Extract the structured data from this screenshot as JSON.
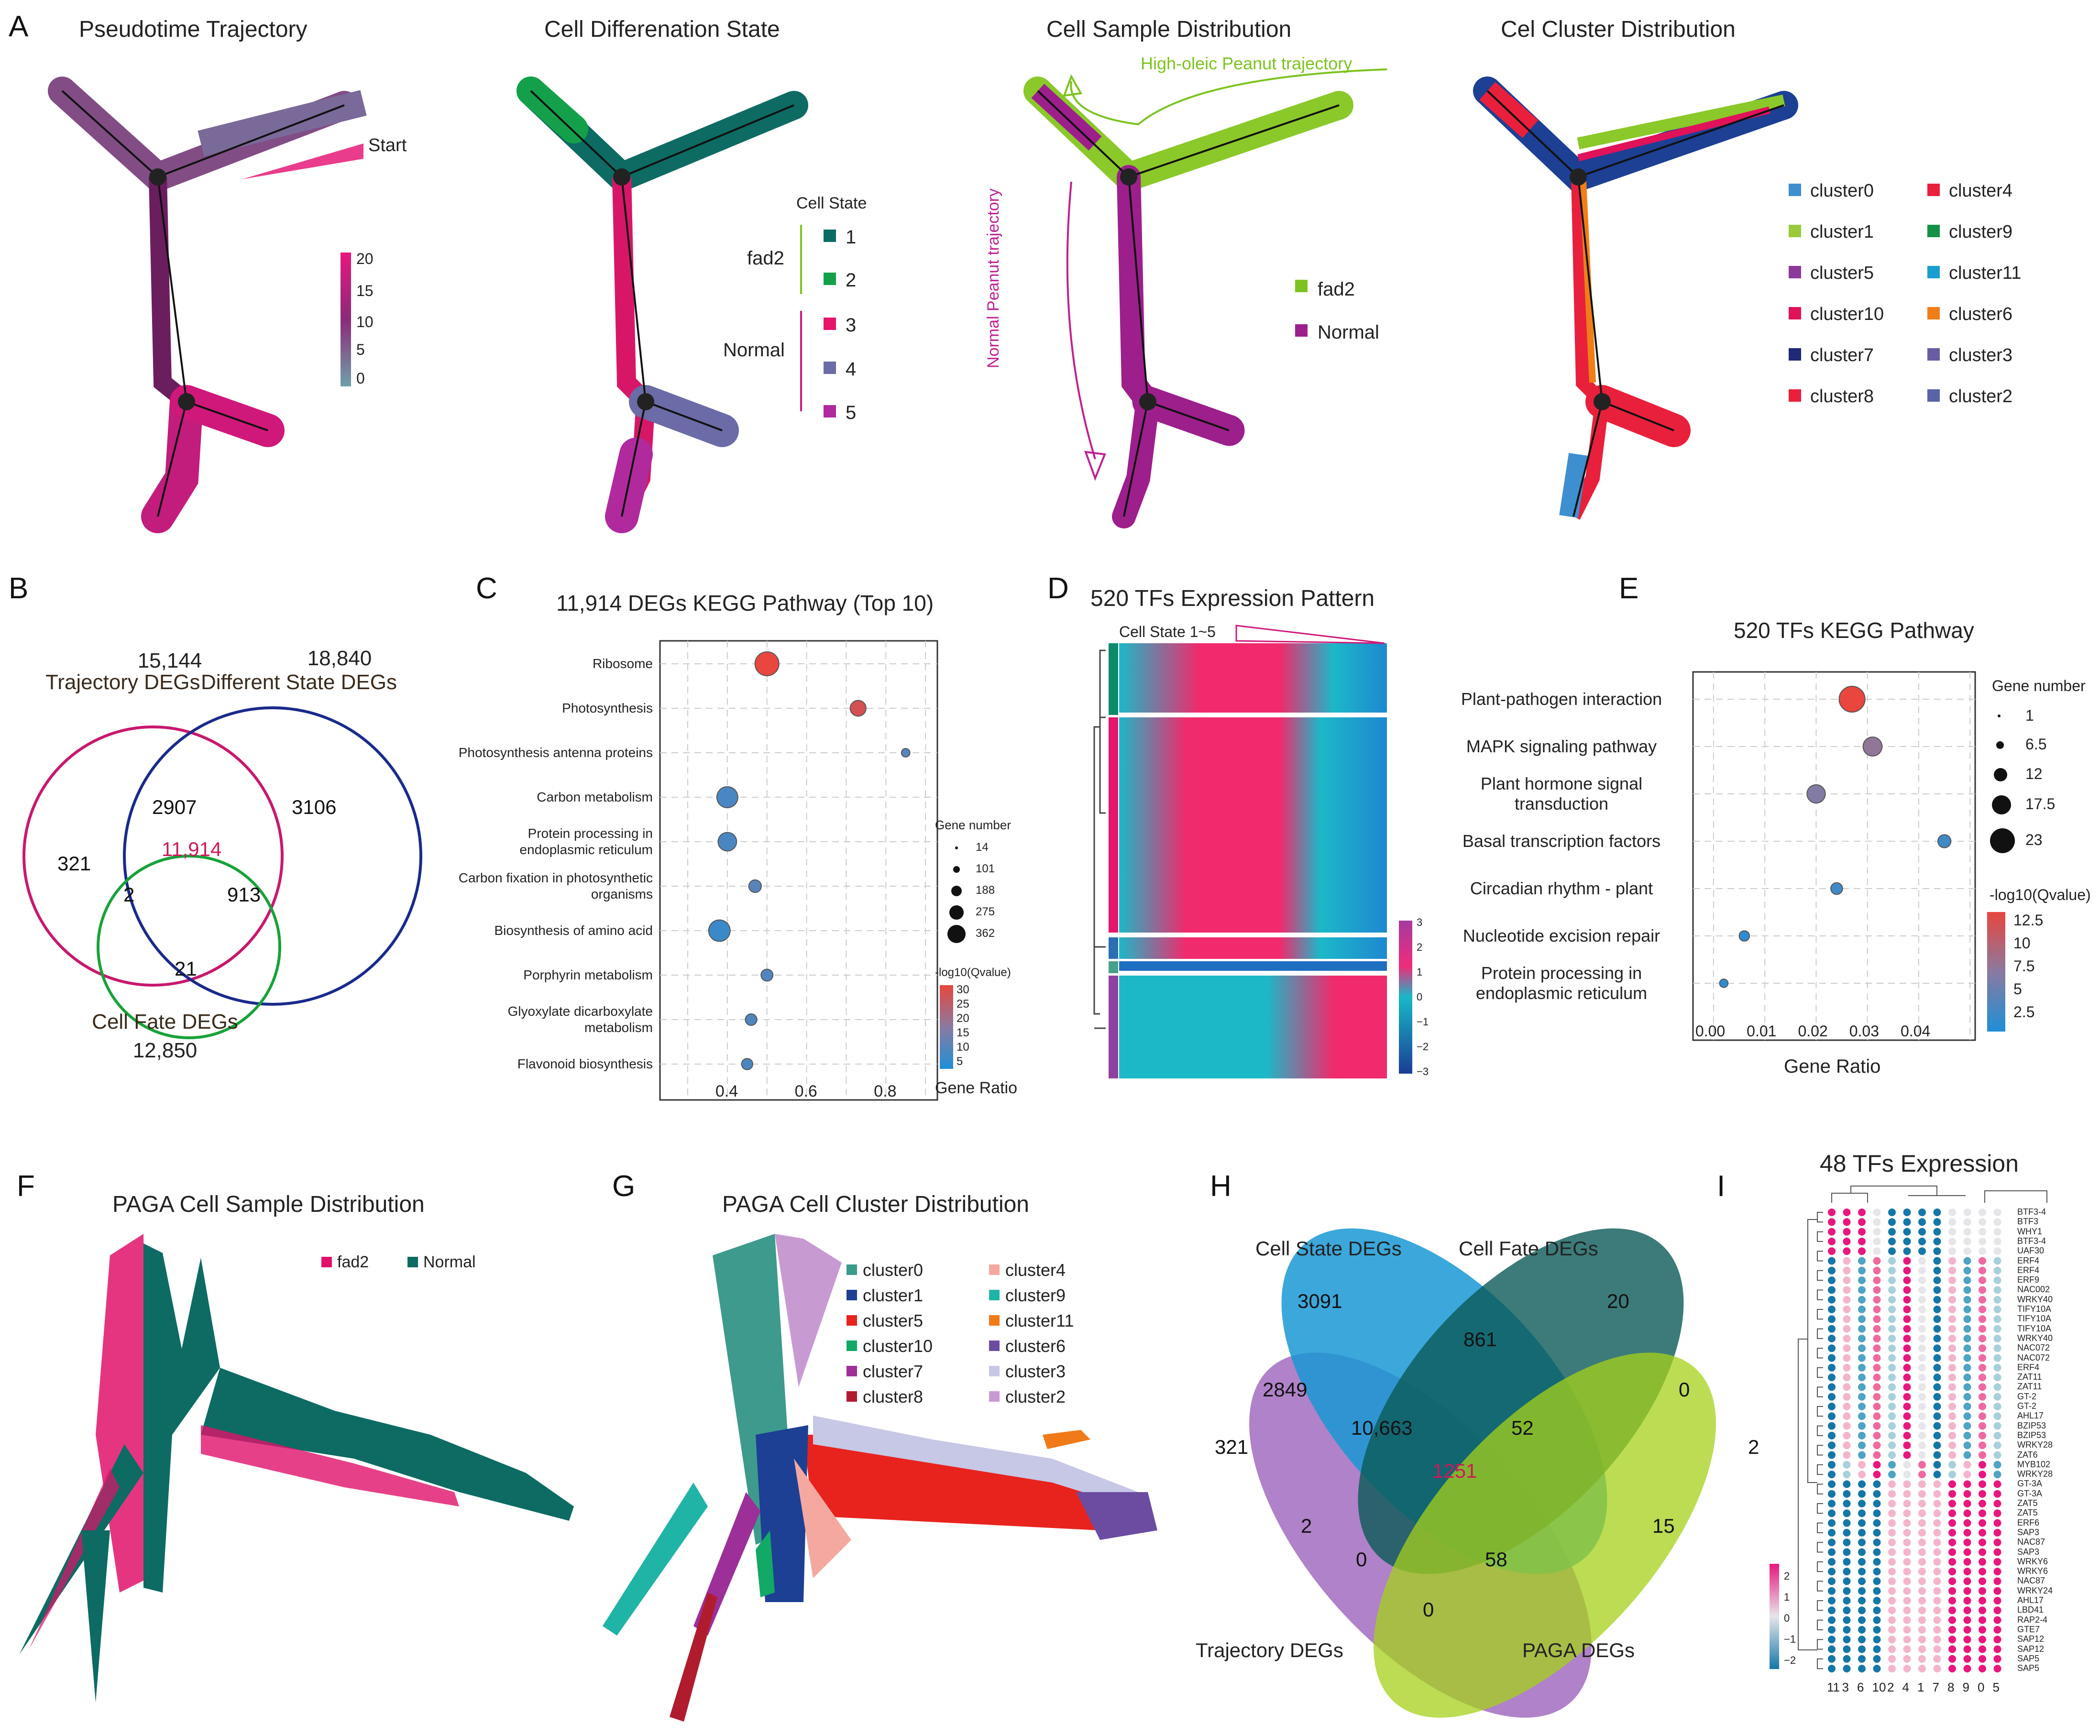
{
  "panels": {
    "A": {
      "letter": "A",
      "titles": [
        "Pseudotime Trajectory",
        "Cell Differenation State",
        "Cell Sample Distribution",
        "Cel Cluster Distribution"
      ],
      "start_label": "Start",
      "pseudotime_ticks": [
        "20",
        "15",
        "10",
        "5",
        "0"
      ],
      "cell_state": {
        "title": "Cell State",
        "groups": [
          "fad2",
          "Normal"
        ],
        "states": [
          "1",
          "2",
          "3",
          "4",
          "5"
        ],
        "colors": [
          "#0d6b63",
          "#14a04a",
          "#e6156b",
          "#6b6ba8",
          "#b02a9e"
        ]
      },
      "sample": {
        "items": [
          "fad2",
          "Normal"
        ],
        "colors": [
          "#7dc31f",
          "#9c1f8c"
        ],
        "annotations": [
          "High-oleic Peanut trajectory",
          "Normal Peanut trajectory"
        ]
      },
      "clusters": {
        "items": [
          "cluster0",
          "cluster4",
          "cluster1",
          "cluster9",
          "cluster5",
          "cluster11",
          "cluster10",
          "cluster6",
          "cluster7",
          "cluster3",
          "cluster8",
          "cluster2"
        ],
        "colors": [
          "#3d8fd0",
          "#e8203c",
          "#9ac93b",
          "#149048",
          "#8b3a9c",
          "#1a9ed0",
          "#e0125a",
          "#f07e16",
          "#202878",
          "#6a5ca3",
          "#e8203c",
          "#5a62a8"
        ]
      }
    },
    "B": {
      "letter": "B",
      "sets": [
        {
          "name": "Trajectory DEGs",
          "total": "15,144"
        },
        {
          "name": "Different State DEGs",
          "total": "18,840"
        },
        {
          "name": "Cell Fate DEGs",
          "total": "12,850"
        }
      ],
      "regions": {
        "only_traj": "321",
        "traj_state": "2907",
        "only_state": "3106",
        "all": "11,914",
        "traj_fate": "2",
        "state_fate": "913",
        "only_fate": "21"
      }
    },
    "C": {
      "letter": "C"
    },
    "D": {
      "letter": "D",
      "title": "520 TFs Expression Pattern",
      "state_label": "Cell State 1~5",
      "ticks": [
        "3",
        "2",
        "1",
        "0",
        "−1",
        "−2",
        "−3"
      ]
    },
    "E": {
      "letter": "E"
    },
    "F": {
      "letter": "F",
      "title": "PAGA Cell Sample Distribution",
      "legend": [
        "fad2",
        "Normal"
      ]
    },
    "G": {
      "letter": "G",
      "title": "PAGA Cell Cluster Distribution",
      "legend": [
        "cluster0",
        "cluster4",
        "cluster1",
        "cluster9",
        "cluster5",
        "cluster11",
        "cluster10",
        "cluster6",
        "cluster7",
        "cluster3",
        "cluster8",
        "cluster2"
      ],
      "colors": [
        "#3d9a8c",
        "#f4a8a0",
        "#1d3f94",
        "#20b4a6",
        "#e8231e",
        "#f07a18",
        "#12a866",
        "#6b4ca0",
        "#9c2f98",
        "#c7c7e6",
        "#b01c2e",
        "#c79ad2"
      ]
    },
    "H": {
      "letter": "H",
      "sets": [
        "Cell State DEGs",
        "Cell Fate DEGs",
        "Trajectory DEGs",
        "PAGA DEGs"
      ],
      "regions": {
        "s_only": "3091",
        "f_only": "20",
        "sf": "861",
        "f_p": "0",
        "st": "2849",
        "sft": "10,663",
        "sfp": "52",
        "t_only": "321",
        "p_only": "2",
        "all": "1251",
        "tp_s": "2",
        "sfp2": "15",
        "tf_only": "0",
        "tfp": "58",
        "tp": "0"
      }
    },
    "I": {
      "letter": "I",
      "title": "48 TFs Expression",
      "genes": [
        "BTF3-4",
        "BTF3",
        "WHY1",
        "BTF3-4",
        "UAF30",
        "ERF4",
        "ERF4",
        "ERF9",
        "NAC002",
        "WRKY40",
        "TIFY10A",
        "TIFY10A",
        "TIFY10A",
        "WRKY40",
        "NAC072",
        "NAC072",
        "ERF4",
        "ZAT11",
        "ZAT11",
        "GT-2",
        "GT-2",
        "AHL17",
        "BZIP53",
        "BZIP53",
        "WRKY28",
        "ZAT6",
        "MYB102",
        "WRKY28",
        "GT-3A",
        "GT-3A",
        "ZAT5",
        "ZAT5",
        "ERF6",
        "SAP3",
        "NAC87",
        "SAP3",
        "WRKY6",
        "WRKY6",
        "NAC87",
        "WRKY24",
        "AHL17",
        "LBD41",
        "RAP2-4",
        "GTE7",
        "SAP12",
        "SAP12",
        "SAP5",
        "SAP5"
      ],
      "columns": [
        "11",
        "3",
        "6",
        "10",
        "2",
        "4",
        "1",
        "7",
        "8",
        "9",
        "0",
        "5"
      ],
      "ticks": [
        "2",
        "1",
        "0",
        "−1",
        "−2"
      ]
    }
  },
  "chart_data": [
    {
      "type": "scatter",
      "panel": "C",
      "title": "11,914 DEGs KEGG Pathway (Top 10)",
      "xlabel": "Gene Ratio",
      "ylabel": "",
      "categories": [
        "Ribosome",
        "Photosynthesis",
        "Photosynthesis antenna proteins",
        "Carbon metabolism",
        "Protein processing in endoplasmic reticulum",
        "Carbon fixation in photosynthetic organisms",
        "Biosynthesis of amino acid",
        "Porphyrin metabolism",
        "Glyoxylate dicarboxylate metabolism",
        "Flavonoid biosynthesis"
      ],
      "x": [
        0.5,
        0.73,
        0.85,
        0.4,
        0.4,
        0.47,
        0.38,
        0.5,
        0.46,
        0.45
      ],
      "gene_number": [
        362,
        120,
        14,
        260,
        188,
        60,
        275,
        50,
        45,
        40
      ],
      "qvalue": [
        30,
        27,
        8,
        6,
        6,
        8,
        4,
        7,
        7,
        6
      ],
      "xlim": [
        0.23,
        0.93
      ],
      "xticks": [
        "0.4",
        "0.6",
        "0.8"
      ],
      "size_legend_title": "Gene number",
      "size_legend": [
        "14",
        "101",
        "188",
        "275",
        "362"
      ],
      "color_legend_title": "-log10(Qvalue)",
      "color_legend": [
        "30",
        "25",
        "20",
        "15",
        "10",
        "5"
      ]
    },
    {
      "type": "scatter",
      "panel": "E",
      "title": "520 TFs KEGG Pathway",
      "xlabel": "Gene Ratio",
      "categories": [
        "Plant-pathogen interaction",
        "MAPK signaling pathway",
        "Plant hormone signal transduction",
        "Basal transcription factors",
        "Circadian rhythm - plant",
        "Nucleotide excision repair",
        "Protein processing in endoplasmic reticulum"
      ],
      "x": [
        0.027,
        0.031,
        0.02,
        0.045,
        0.024,
        0.006,
        0.002
      ],
      "gene_number": [
        23,
        11,
        10,
        4,
        3,
        2,
        1
      ],
      "qvalue": [
        13,
        7,
        6,
        2,
        2,
        1,
        1
      ],
      "xlim": [
        -0.004,
        0.051
      ],
      "xticks": [
        "0.00",
        "0.01",
        "0.02",
        "0.03",
        "0.04"
      ],
      "size_legend_title": "Gene number",
      "size_legend": [
        "1",
        "6.5",
        "12",
        "17.5",
        "23"
      ],
      "color_legend_title": "-log10(Qvalue)",
      "color_legend": [
        "12.5",
        "10",
        "7.5",
        "5",
        "2.5"
      ]
    }
  ]
}
